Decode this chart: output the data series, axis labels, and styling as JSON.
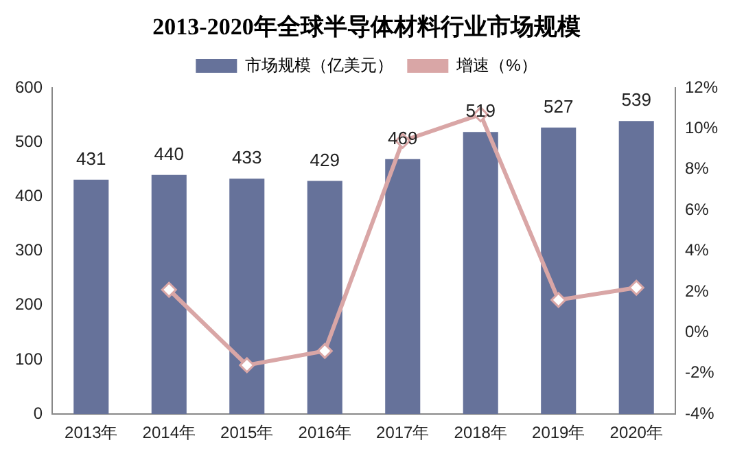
{
  "chart_data": {
    "type": "bar",
    "title": "2013-2020年全球半导体材料行业市场规模",
    "categories": [
      "2013年",
      "2014年",
      "2015年",
      "2016年",
      "2017年",
      "2018年",
      "2019年",
      "2020年"
    ],
    "series": [
      {
        "name": "市场规模（亿美元）",
        "color": "#66729a",
        "values": [
          431,
          440,
          433,
          429,
          469,
          519,
          527,
          539
        ],
        "data_labels": true
      },
      {
        "name": "增速（%）",
        "type": "line",
        "axis": "y2",
        "color": "#d9a6a6",
        "marker": "diamond",
        "values": [
          null,
          2.1,
          -1.6,
          -0.9,
          9.4,
          10.7,
          1.6,
          2.2
        ]
      }
    ],
    "ylim": [
      0,
      600
    ],
    "yticks": [
      0,
      100,
      200,
      300,
      400,
      500,
      600
    ],
    "y2lim": [
      -4,
      12
    ],
    "y2ticks": [
      {
        "value": -4,
        "label": "-4%"
      },
      {
        "value": -2,
        "label": "-2%"
      },
      {
        "value": 0,
        "label": "0%"
      },
      {
        "value": 2,
        "label": "2%"
      },
      {
        "value": 4,
        "label": "4%"
      },
      {
        "value": 6,
        "label": "6%"
      },
      {
        "value": 8,
        "label": "8%"
      },
      {
        "value": 10,
        "label": "10%"
      },
      {
        "value": 12,
        "label": "12%"
      }
    ],
    "grid": false,
    "legend": "top"
  }
}
